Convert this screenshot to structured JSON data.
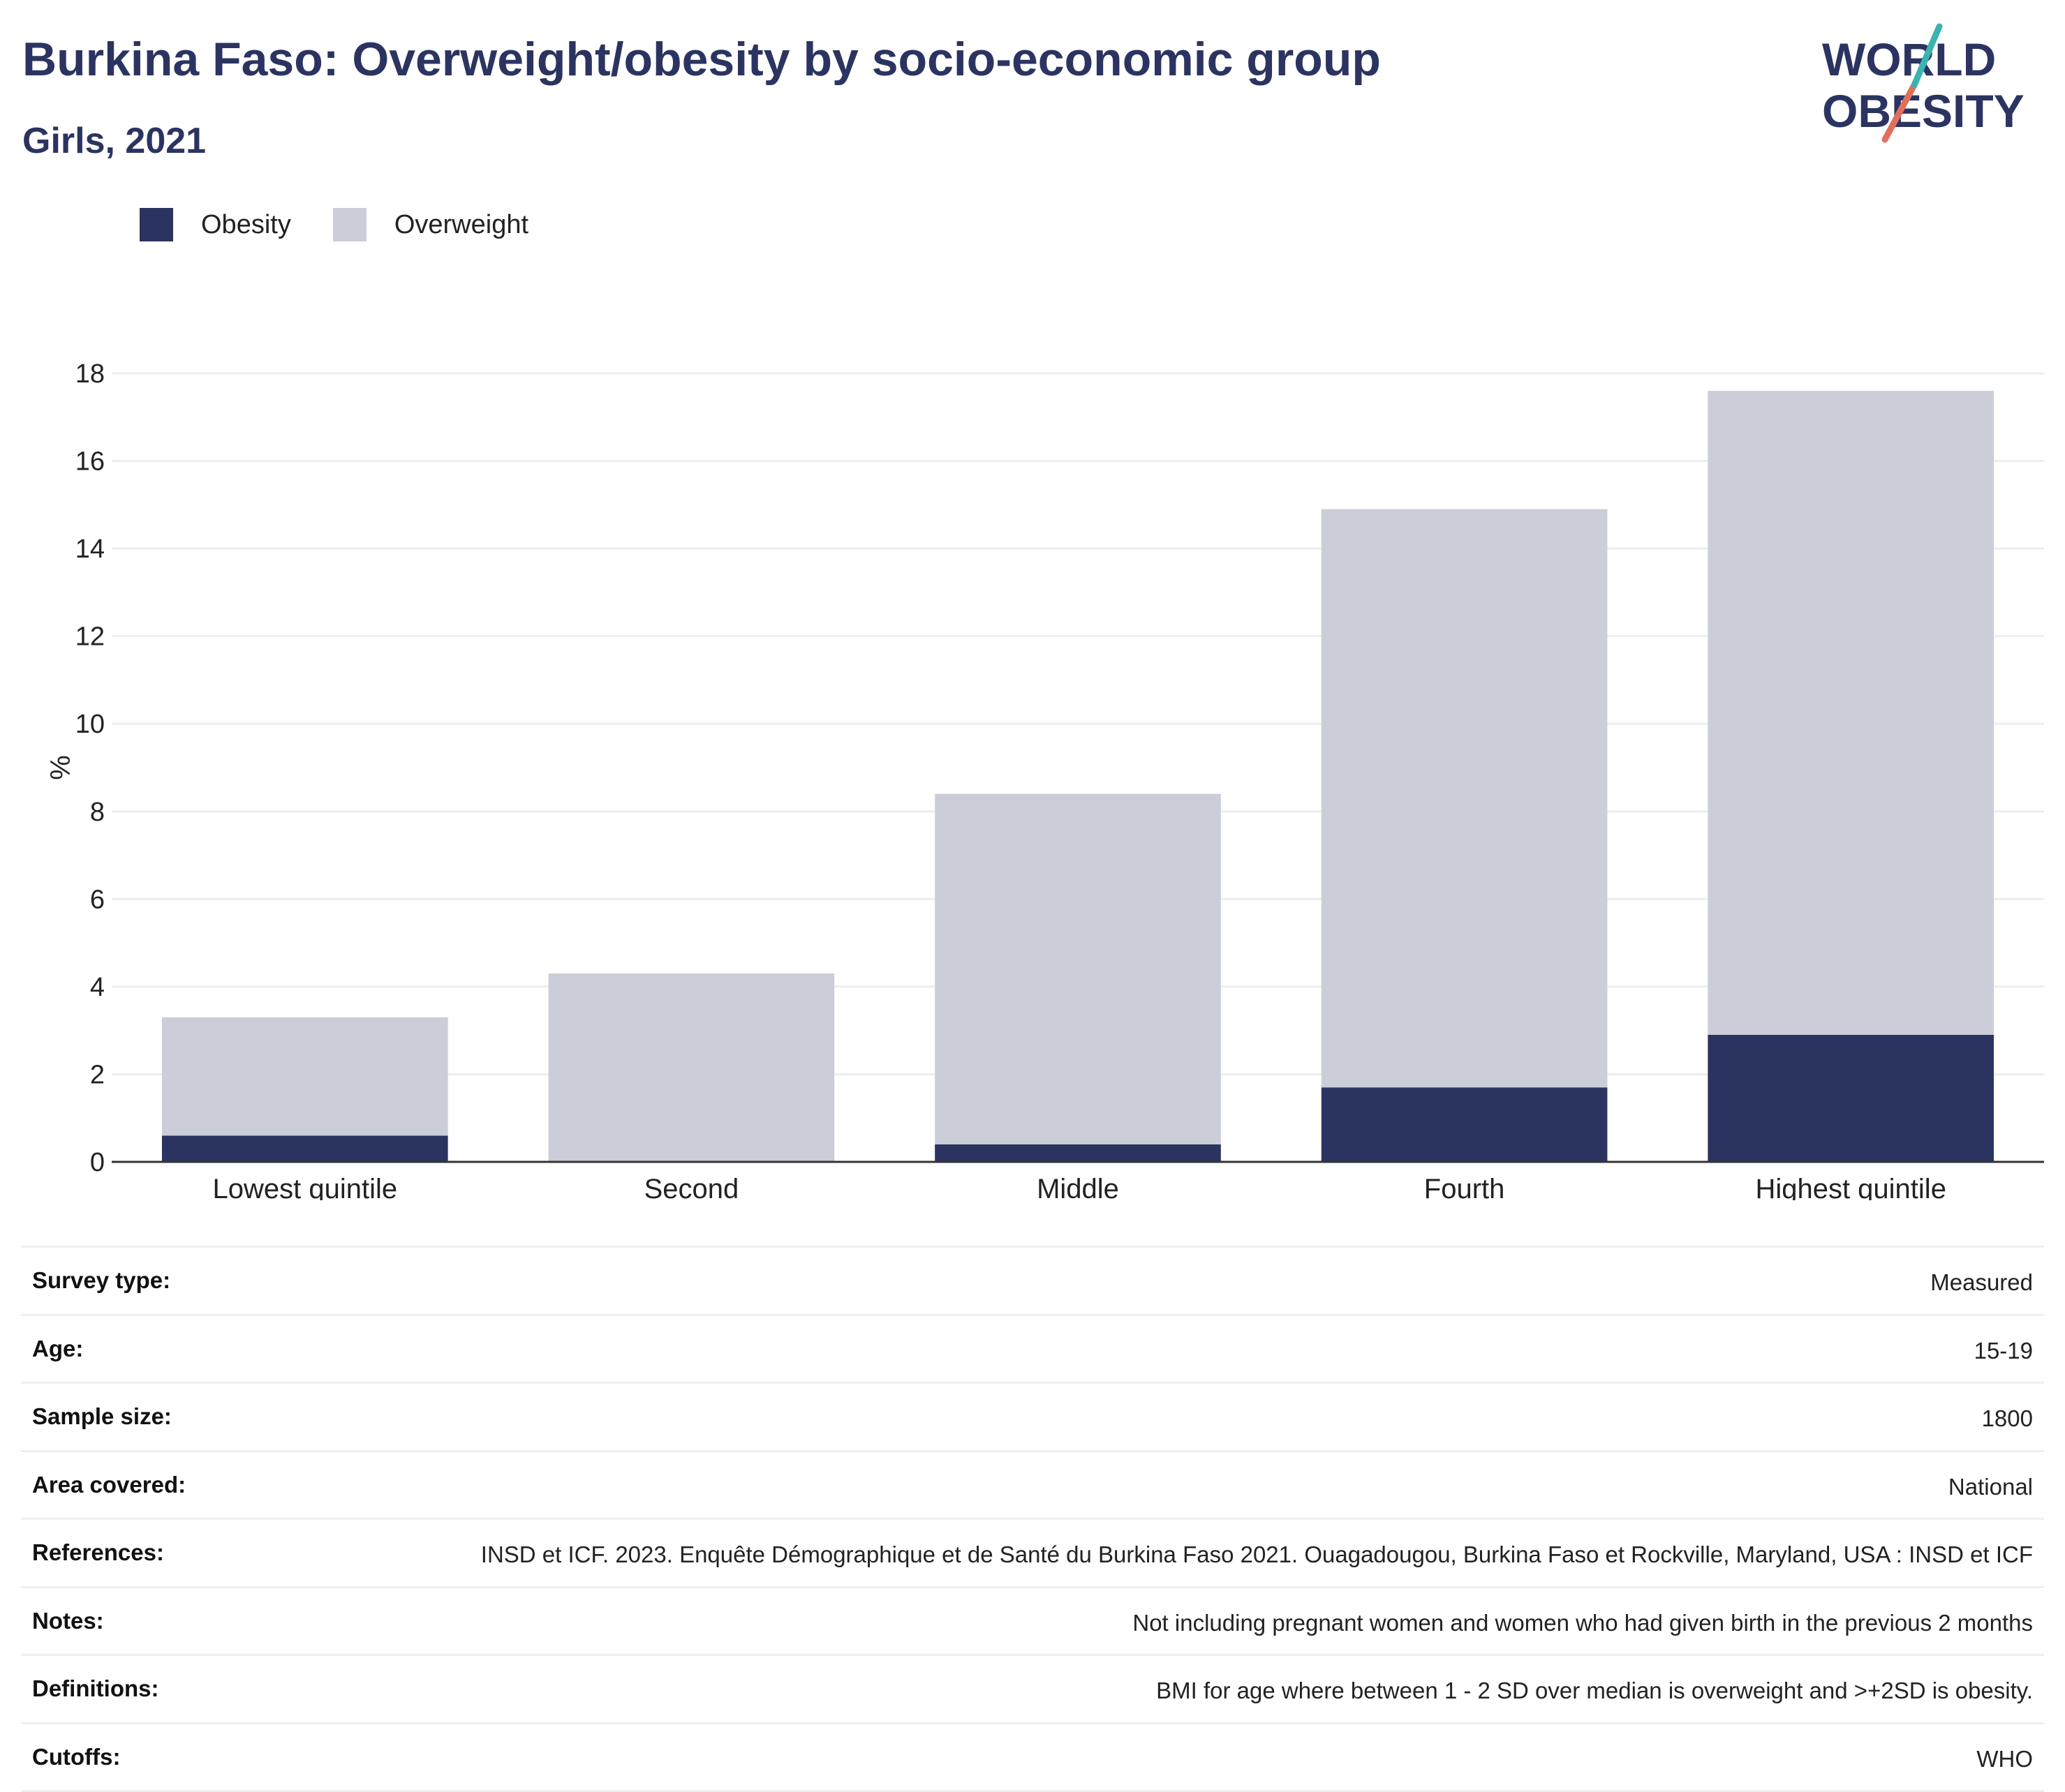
{
  "header": {
    "title": "Burkina Faso: Overweight/obesity by socio-economic group",
    "subtitle": "Girls, 2021"
  },
  "logo": {
    "line1": "WORLD",
    "line2": "OBESITY"
  },
  "legend": [
    {
      "label": "Obesity",
      "color": "#2b3461"
    },
    {
      "label": "Overweight",
      "color": "#cbcdd8"
    }
  ],
  "chart_data": {
    "type": "bar",
    "stacked": true,
    "categories": [
      "Lowest quintile",
      "Second",
      "Middle",
      "Fourth",
      "Highest quintile"
    ],
    "series": [
      {
        "name": "Obesity",
        "color": "#2b3461",
        "values": [
          0.6,
          0.0,
          0.4,
          1.7,
          2.9
        ]
      },
      {
        "name": "Overweight",
        "color": "#cbcdd8",
        "values": [
          2.7,
          4.3,
          8.0,
          13.2,
          14.7
        ]
      }
    ],
    "ylabel": "%",
    "yticks": [
      0,
      2,
      4,
      6,
      8,
      10,
      12,
      14,
      16,
      18
    ],
    "ylim": [
      0,
      18
    ],
    "grid": true
  },
  "meta": [
    {
      "label": "Survey type:",
      "value": "Measured"
    },
    {
      "label": "Age:",
      "value": "15-19"
    },
    {
      "label": "Sample size:",
      "value": "1800"
    },
    {
      "label": "Area covered:",
      "value": "National"
    },
    {
      "label": "References:",
      "value": "INSD et ICF. 2023. Enquête Démographique et de Santé du Burkina Faso 2021. Ouagadougou, Burkina Faso et Rockville, Maryland, USA : INSD et ICF"
    },
    {
      "label": "Notes:",
      "value": "Not including pregnant women and women who had given birth in the previous 2 months"
    },
    {
      "label": "Definitions:",
      "value": "BMI for age where between 1 - 2 SD over median is overweight and >+2SD is obesity."
    },
    {
      "label": "Cutoffs:",
      "value": "WHO"
    }
  ]
}
